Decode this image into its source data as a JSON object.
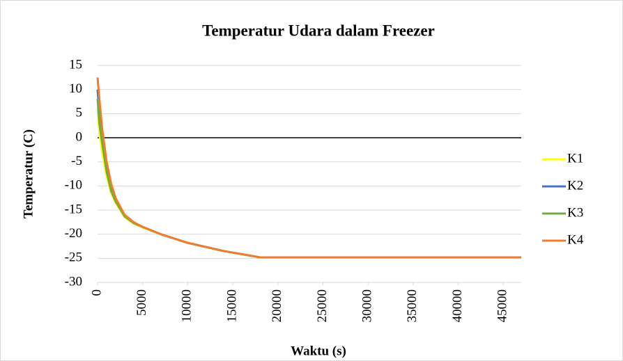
{
  "chart_data": {
    "type": "line",
    "title": "Temperatur Udara dalam Freezer",
    "x_label": "Waktu (s)",
    "y_label": "Temperatur (C)",
    "x": [
      0,
      200,
      500,
      1000,
      1500,
      2000,
      3000,
      4000,
      5000,
      7000,
      10000,
      14000,
      18000,
      47000
    ],
    "series": [
      {
        "name": "K1",
        "color": "#ffff00",
        "values": [
          6,
          1,
          -3,
          -8,
          -11.5,
          -13.5,
          -16.5,
          -17.8,
          -18.6,
          -20,
          -21.8,
          -23.5,
          -24.8,
          -24.8
        ]
      },
      {
        "name": "K2",
        "color": "#4472c4",
        "values": [
          10,
          5,
          0,
          -6.5,
          -10.5,
          -13,
          -16.2,
          -17.6,
          -18.5,
          -20,
          -21.8,
          -23.5,
          -24.8,
          -24.8
        ]
      },
      {
        "name": "K3",
        "color": "#70ad47",
        "values": [
          8,
          3,
          -1,
          -7,
          -11,
          -13.2,
          -16.3,
          -17.7,
          -18.5,
          -20,
          -21.8,
          -23.5,
          -24.8,
          -24.8
        ]
      },
      {
        "name": "K4",
        "color": "#ed7d31",
        "values": [
          12.5,
          8,
          2,
          -5,
          -9.5,
          -12.5,
          -16,
          -17.5,
          -18.5,
          -20,
          -21.8,
          -23.5,
          -24.8,
          -24.8
        ]
      }
    ],
    "xlim": [
      0,
      47000
    ],
    "xticks": [
      0,
      5000,
      10000,
      15000,
      20000,
      25000,
      30000,
      35000,
      40000,
      45000
    ],
    "ylim": [
      -30,
      15
    ],
    "yticks": [
      -30,
      -25,
      -20,
      -15,
      -10,
      -5,
      0,
      5,
      10,
      15
    ],
    "grid": true,
    "legend": "right"
  }
}
